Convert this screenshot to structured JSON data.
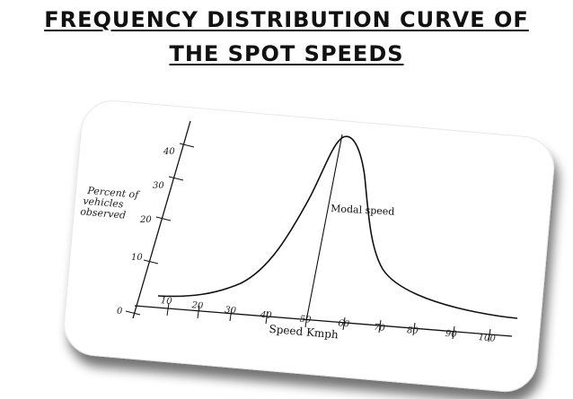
{
  "title": {
    "line1": "FREQUENCY DISTRIBUTION CURVE OF",
    "line2": "THE SPOT SPEEDS"
  },
  "diagram": {
    "y_axis_label": [
      "Percent of",
      "vehicles",
      "observed"
    ],
    "y_ticks": [
      "0",
      "10",
      "20",
      "30",
      "40"
    ],
    "x_ticks": [
      "10",
      "20",
      "30",
      "40",
      "50",
      "60",
      "70",
      "80",
      "90",
      "100"
    ],
    "x_axis_label": "Speed Kmph",
    "annotation": "Modal speed"
  }
}
